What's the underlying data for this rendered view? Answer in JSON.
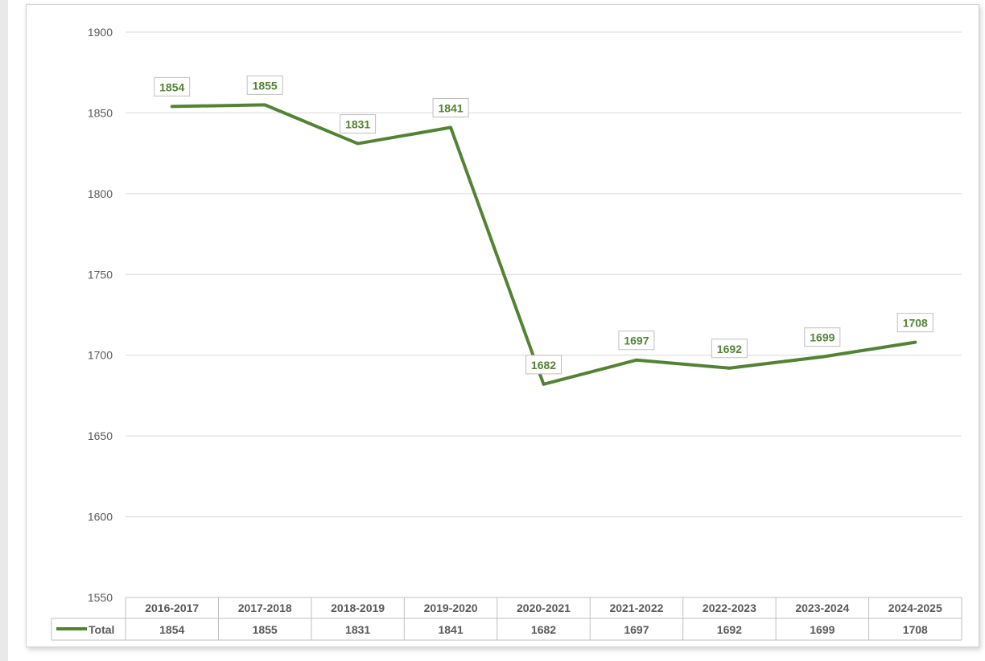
{
  "chart_data": {
    "type": "line",
    "categories": [
      "2016-2017",
      "2017-2018",
      "2018-2019",
      "2019-2020",
      "2020-2021",
      "2021-2022",
      "2022-2023",
      "2023-2024",
      "2024-2025"
    ],
    "series": [
      {
        "name": "Total",
        "values": [
          1854,
          1855,
          1831,
          1841,
          1682,
          1697,
          1692,
          1699,
          1708
        ]
      }
    ],
    "ylim": [
      1550,
      1900
    ],
    "yticks": [
      1550,
      1600,
      1650,
      1700,
      1750,
      1800,
      1850,
      1900
    ],
    "grid": true,
    "data_labels": true,
    "data_table": true,
    "colors": {
      "series": "#548235",
      "grid": "#d9d9d9",
      "axis_text": "#595959"
    }
  }
}
